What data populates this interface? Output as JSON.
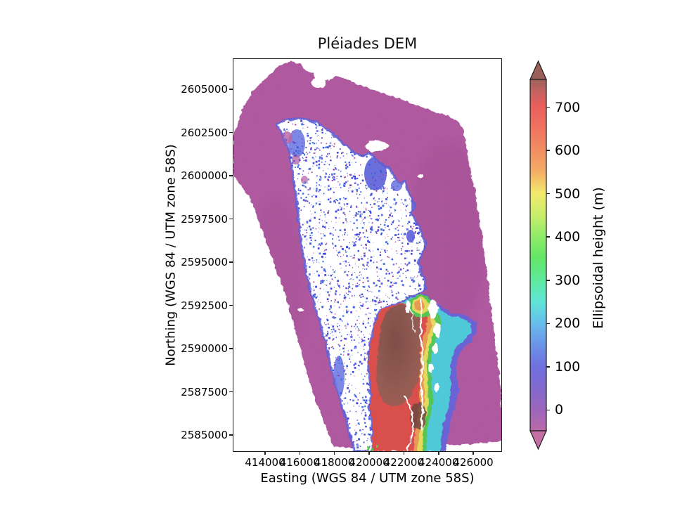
{
  "figure": {
    "title": "Pléiades DEM"
  },
  "axes": {
    "xlabel": "Easting (WGS 84 / UTM zone 58S)",
    "ylabel": "Northing (WGS 84 / UTM zone 58S)",
    "x_tick_labels": [
      "414000",
      "416000",
      "418000",
      "420000",
      "422000",
      "424000",
      "426000"
    ],
    "y_tick_labels": [
      "2605000",
      "2602500",
      "2600000",
      "2597500",
      "2595000",
      "2592500",
      "2590000",
      "2587500",
      "2585000"
    ]
  },
  "colorbar": {
    "label": "Ellipsoidal height (m)",
    "tick_labels": [
      "700",
      "600",
      "500",
      "400",
      "300",
      "200",
      "100",
      "0"
    ],
    "vmin": -48,
    "vmax": 762,
    "extend": "both",
    "over_color": "#9a5f59",
    "under_color": "#c470a4",
    "stops": [
      {
        "v": 762,
        "c": "#9e5f5b"
      },
      {
        "v": 730,
        "c": "#c96260"
      },
      {
        "v": 700,
        "c": "#ea5e5c"
      },
      {
        "v": 650,
        "c": "#ef7360"
      },
      {
        "v": 600,
        "c": "#f28c62"
      },
      {
        "v": 550,
        "c": "#f5ad66"
      },
      {
        "v": 500,
        "c": "#f3e96c"
      },
      {
        "v": 450,
        "c": "#c9ee6b"
      },
      {
        "v": 400,
        "c": "#8feb68"
      },
      {
        "v": 350,
        "c": "#63e667"
      },
      {
        "v": 300,
        "c": "#5ee89c"
      },
      {
        "v": 250,
        "c": "#5fe6d6"
      },
      {
        "v": 200,
        "c": "#66bdeb"
      },
      {
        "v": 150,
        "c": "#6b93e8"
      },
      {
        "v": 100,
        "c": "#6f70df"
      },
      {
        "v": 50,
        "c": "#8168cd"
      },
      {
        "v": 0,
        "c": "#9c66bb"
      },
      {
        "v": -48,
        "c": "#b96aa8"
      }
    ]
  },
  "map_colors": {
    "sea": "#b0579f",
    "sea_shade": "#8a4080",
    "nodata": "#ffffff",
    "coast_blue": "#5b5fd8",
    "coast_blue_light": "#6f7ae2",
    "fringe_violet": "#6a63d6",
    "fringe_cyan": "#4fc9d8",
    "fringe_green": "#56c556",
    "fringe_yellow": "#e3d95e",
    "fringe_orange": "#e89a55",
    "flank_red": "#d94f4b",
    "summit_brown": "#8f5a52",
    "summit_dark": "#6f453f"
  },
  "chart_data": {
    "type": "heatmap",
    "title": "Pléiades DEM",
    "xlabel": "Easting (WGS 84 / UTM zone 58S)",
    "ylabel": "Northing (WGS 84 / UTM zone 58S)",
    "x_ticks": [
      414000,
      416000,
      418000,
      420000,
      422000,
      424000,
      426000
    ],
    "y_ticks": [
      2605000,
      2602500,
      2600000,
      2597500,
      2595000,
      2592500,
      2590000,
      2587500,
      2585000
    ],
    "xlim": [
      412200,
      427650
    ],
    "ylim": [
      2584050,
      2606750
    ],
    "grid": false,
    "legend_position": "right-colorbar",
    "colorbar": {
      "label": "Ellipsoidal height (m)",
      "ticks": [
        0,
        100,
        200,
        300,
        400,
        500,
        600,
        700
      ],
      "vmin": -48,
      "vmax": 762,
      "extend": "both"
    },
    "features": [
      {
        "name": "sea-surface",
        "height_m": 0,
        "color": "#b0579f",
        "extent": "rotated rectangular DEM footprint (~19° clockwise) covering most of the axes"
      },
      {
        "name": "nodata-island",
        "color": "#ffffff",
        "extent": "elongated NNW-SSE island interior (~E418000-422000, N2587000-2602500) with no data, speckled by blue and magenta noise pixels"
      },
      {
        "name": "coastal-fringe",
        "height_m": "50-250",
        "color": "#5b5fd8",
        "extent": "blue low-elevation band along the island shoreline"
      },
      {
        "name": "summit-massif",
        "height_m": "600-762",
        "color": "#8f5a52",
        "extent": "hillshaded dark-red summit (~E420500-422500, N2585000-2590500) with red flanks and rainbow elevation fringe descending east to the sea"
      }
    ]
  }
}
